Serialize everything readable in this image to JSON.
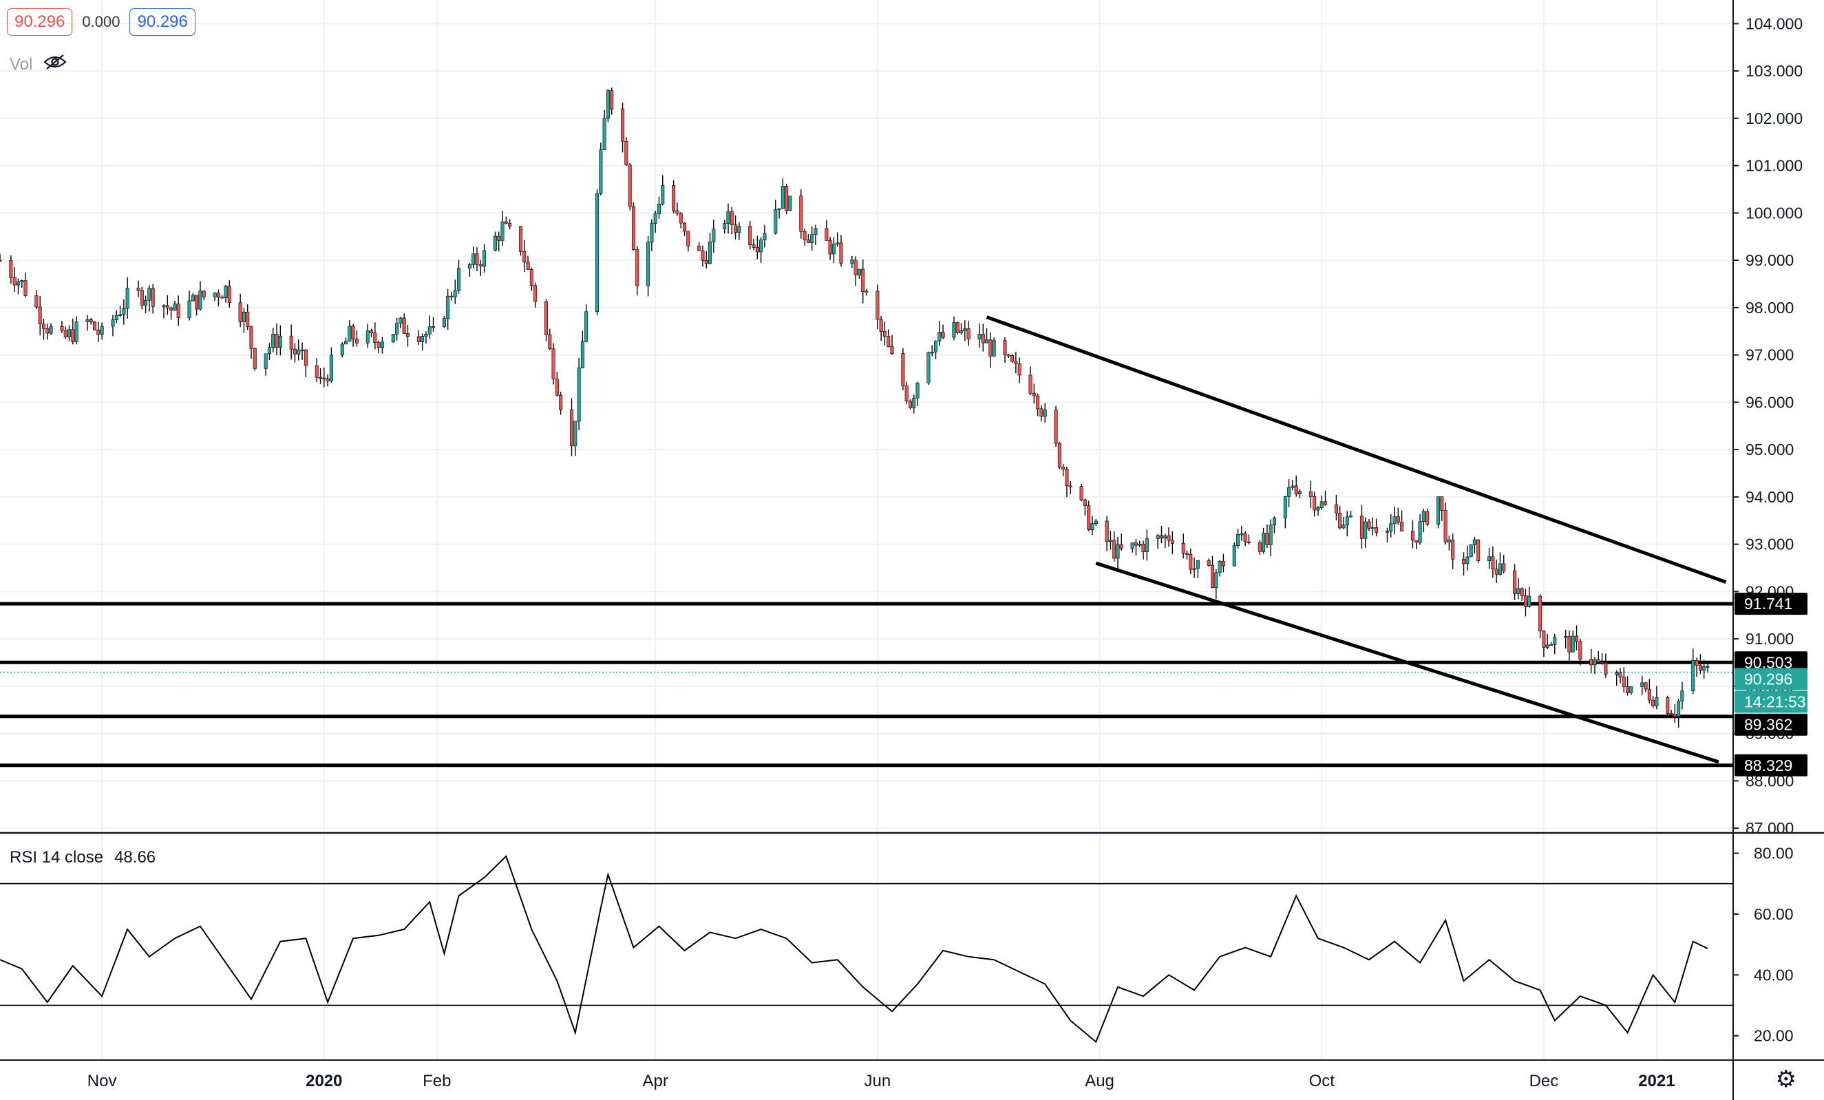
{
  "legend": {
    "open_value": "90.296",
    "change_value": "0.000",
    "close_value": "90.296",
    "volume_label": "Vol",
    "volume_icon": "eye-hidden-icon"
  },
  "rsi_panel": {
    "label": "RSI 14 close",
    "value": "48.66"
  },
  "price_tags": {
    "resistance_1": "91.741",
    "resistance_2": "90.503",
    "last_price": "90.296",
    "countdown": "14:21:53",
    "support_1": "89.362",
    "support_2": "88.329"
  },
  "colors": {
    "up": "#26a69a",
    "down": "#ef5350",
    "grid": "#eef0f3",
    "axis": "#131722",
    "last_price": "#26a69a",
    "annotation": "#000000"
  },
  "settings_icon": "gear-icon",
  "chart_data": [
    {
      "type": "candlestick",
      "title": "",
      "x_ticks": [
        "Nov",
        "2020",
        "Feb",
        "Apr",
        "Jun",
        "Aug",
        "Oct",
        "Dec",
        "2021"
      ],
      "x_tick_dates": [
        "2019-11-01",
        "2020-01-01",
        "2020-02-01",
        "2020-04-01",
        "2020-06-01",
        "2020-08-01",
        "2020-10-01",
        "2020-12-01",
        "2021-01-01"
      ],
      "x_range": [
        "2019-10-04",
        "2021-01-22"
      ],
      "y_ticks": [
        "87.000",
        "88.000",
        "89.000",
        "90.000",
        "91.000",
        "92.000",
        "93.000",
        "94.000",
        "95.000",
        "96.000",
        "97.000",
        "98.000",
        "99.000",
        "100.000",
        "101.000",
        "102.000",
        "103.000",
        "104.000"
      ],
      "ylim": [
        86.9,
        104.5
      ],
      "grid": true,
      "close_path": [
        [
          "2019-10-04",
          99.0
        ],
        [
          "2019-10-10",
          98.5
        ],
        [
          "2019-10-17",
          97.6
        ],
        [
          "2019-10-21",
          97.3
        ],
        [
          "2019-10-28",
          97.7
        ],
        [
          "2019-11-01",
          97.4
        ],
        [
          "2019-11-08",
          98.2
        ],
        [
          "2019-11-14",
          98.3
        ],
        [
          "2019-11-21",
          97.9
        ],
        [
          "2019-11-28",
          98.2
        ],
        [
          "2019-12-05",
          98.4
        ],
        [
          "2019-12-10",
          97.8
        ],
        [
          "2019-12-13",
          96.9
        ],
        [
          "2019-12-20",
          97.4
        ],
        [
          "2019-12-27",
          96.8
        ],
        [
          "2019-12-31",
          96.4
        ],
        [
          "2020-01-08",
          97.4
        ],
        [
          "2020-01-15",
          97.3
        ],
        [
          "2020-01-22",
          97.6
        ],
        [
          "2020-01-31",
          97.4
        ],
        [
          "2020-02-07",
          98.7
        ],
        [
          "2020-02-14",
          99.1
        ],
        [
          "2020-02-19",
          99.7
        ],
        [
          "2020-02-24",
          99.3
        ],
        [
          "2020-03-02",
          97.4
        ],
        [
          "2020-03-09",
          95.0
        ],
        [
          "2020-03-13",
          98.0
        ],
        [
          "2020-03-19",
          102.7
        ],
        [
          "2020-03-24",
          101.2
        ],
        [
          "2020-03-27",
          98.5
        ],
        [
          "2020-04-03",
          100.6
        ],
        [
          "2020-04-09",
          99.5
        ],
        [
          "2020-04-14",
          99.0
        ],
        [
          "2020-04-20",
          99.9
        ],
        [
          "2020-04-29",
          99.4
        ],
        [
          "2020-05-06",
          100.4
        ],
        [
          "2020-05-12",
          99.6
        ],
        [
          "2020-05-19",
          99.3
        ],
        [
          "2020-05-26",
          98.8
        ],
        [
          "2020-06-05",
          96.9
        ],
        [
          "2020-06-10",
          96.0
        ],
        [
          "2020-06-15",
          97.2
        ],
        [
          "2020-06-22",
          97.5
        ],
        [
          "2020-06-30",
          97.3
        ],
        [
          "2020-07-07",
          96.8
        ],
        [
          "2020-07-14",
          96.3
        ],
        [
          "2020-07-21",
          94.8
        ],
        [
          "2020-07-28",
          93.6
        ],
        [
          "2020-07-31",
          93.3
        ],
        [
          "2020-08-06",
          92.8
        ],
        [
          "2020-08-13",
          93.0
        ],
        [
          "2020-08-21",
          93.2
        ],
        [
          "2020-08-27",
          92.5
        ],
        [
          "2020-09-01",
          92.3
        ],
        [
          "2020-09-09",
          93.2
        ],
        [
          "2020-09-16",
          93.0
        ],
        [
          "2020-09-23",
          94.3
        ],
        [
          "2020-09-28",
          94.0
        ],
        [
          "2020-10-05",
          93.6
        ],
        [
          "2020-10-12",
          93.3
        ],
        [
          "2020-10-19",
          93.5
        ],
        [
          "2020-10-26",
          93.1
        ],
        [
          "2020-11-02",
          94.0
        ],
        [
          "2020-11-06",
          92.5
        ],
        [
          "2020-11-12",
          92.9
        ],
        [
          "2020-11-19",
          92.4
        ],
        [
          "2020-11-26",
          91.9
        ],
        [
          "2020-12-01",
          91.0
        ],
        [
          "2020-12-08",
          90.9
        ],
        [
          "2020-12-15",
          90.5
        ],
        [
          "2020-12-21",
          90.1
        ],
        [
          "2020-12-29",
          89.9
        ],
        [
          "2021-01-06",
          89.5
        ],
        [
          "2021-01-11",
          90.4
        ],
        [
          "2021-01-15",
          90.3
        ]
      ],
      "horizontal_levels": [
        91.741,
        90.503,
        89.362,
        88.329
      ],
      "last_price": 90.296,
      "trendlines": [
        {
          "name": "channel-upper",
          "from": [
            "2020-07-01",
            97.8
          ],
          "to": [
            "2021-01-20",
            92.2
          ]
        },
        {
          "name": "channel-lower",
          "from": [
            "2020-07-31",
            92.6
          ],
          "to": [
            "2021-01-18",
            88.4
          ]
        }
      ]
    },
    {
      "type": "line",
      "title": "RSI 14 close",
      "y_ticks": [
        "20.00",
        "40.00",
        "60.00",
        "80.00"
      ],
      "ylim": [
        12,
        86
      ],
      "bands": [
        30,
        70
      ],
      "series": [
        {
          "values_path": [
            [
              "2019-10-04",
              45
            ],
            [
              "2019-10-10",
              42
            ],
            [
              "2019-10-17",
              31
            ],
            [
              "2019-10-24",
              43
            ],
            [
              "2019-11-01",
              33
            ],
            [
              "2019-11-08",
              55
            ],
            [
              "2019-11-14",
              46
            ],
            [
              "2019-11-21",
              52
            ],
            [
              "2019-11-28",
              56
            ],
            [
              "2019-12-05",
              44
            ],
            [
              "2019-12-12",
              32
            ],
            [
              "2019-12-20",
              51
            ],
            [
              "2019-12-27",
              52
            ],
            [
              "2020-01-02",
              31
            ],
            [
              "2020-01-09",
              52
            ],
            [
              "2020-01-16",
              53
            ],
            [
              "2020-01-23",
              55
            ],
            [
              "2020-01-30",
              64
            ],
            [
              "2020-02-03",
              47
            ],
            [
              "2020-02-07",
              66
            ],
            [
              "2020-02-14",
              72
            ],
            [
              "2020-02-20",
              79
            ],
            [
              "2020-02-27",
              55
            ],
            [
              "2020-03-05",
              38
            ],
            [
              "2020-03-10",
              21
            ],
            [
              "2020-03-17",
              62
            ],
            [
              "2020-03-19",
              73
            ],
            [
              "2020-03-26",
              49
            ],
            [
              "2020-04-02",
              56
            ],
            [
              "2020-04-09",
              48
            ],
            [
              "2020-04-16",
              54
            ],
            [
              "2020-04-23",
              52
            ],
            [
              "2020-04-30",
              55
            ],
            [
              "2020-05-07",
              52
            ],
            [
              "2020-05-14",
              44
            ],
            [
              "2020-05-21",
              45
            ],
            [
              "2020-05-28",
              36
            ],
            [
              "2020-06-05",
              28
            ],
            [
              "2020-06-12",
              37
            ],
            [
              "2020-06-19",
              48
            ],
            [
              "2020-06-26",
              46
            ],
            [
              "2020-07-03",
              45
            ],
            [
              "2020-07-10",
              41
            ],
            [
              "2020-07-17",
              37
            ],
            [
              "2020-07-24",
              25
            ],
            [
              "2020-07-31",
              18
            ],
            [
              "2020-08-06",
              36
            ],
            [
              "2020-08-13",
              33
            ],
            [
              "2020-08-20",
              40
            ],
            [
              "2020-08-27",
              35
            ],
            [
              "2020-09-03",
              46
            ],
            [
              "2020-09-10",
              49
            ],
            [
              "2020-09-17",
              46
            ],
            [
              "2020-09-24",
              66
            ],
            [
              "2020-09-30",
              52
            ],
            [
              "2020-10-07",
              49
            ],
            [
              "2020-10-14",
              45
            ],
            [
              "2020-10-21",
              51
            ],
            [
              "2020-10-28",
              44
            ],
            [
              "2020-11-04",
              58
            ],
            [
              "2020-11-09",
              38
            ],
            [
              "2020-11-16",
              45
            ],
            [
              "2020-11-23",
              38
            ],
            [
              "2020-11-30",
              35
            ],
            [
              "2020-12-04",
              25
            ],
            [
              "2020-12-11",
              33
            ],
            [
              "2020-12-18",
              30
            ],
            [
              "2020-12-24",
              21
            ],
            [
              "2020-12-31",
              40
            ],
            [
              "2021-01-06",
              31
            ],
            [
              "2021-01-11",
              51
            ],
            [
              "2021-01-15",
              48.66
            ]
          ]
        }
      ]
    }
  ]
}
